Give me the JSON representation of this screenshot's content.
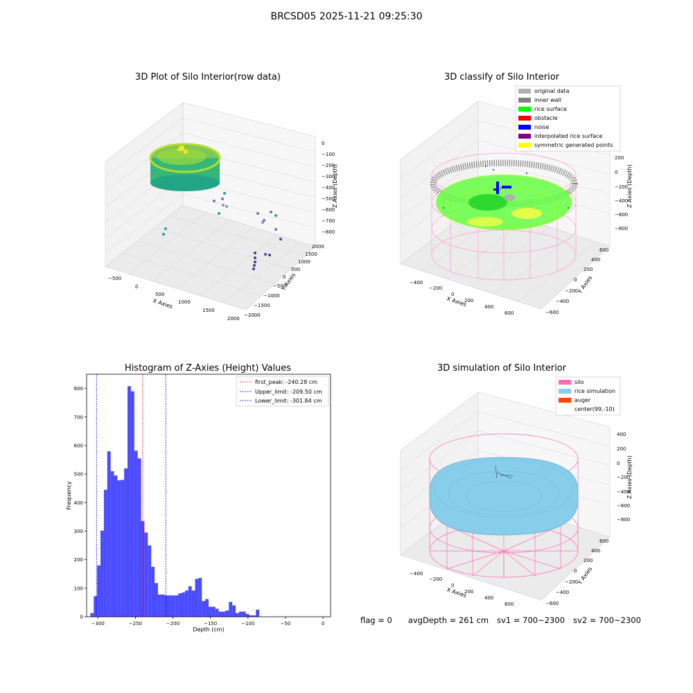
{
  "figure": {
    "suptitle": "BRCSD05 2025-11-21 09:25:30"
  },
  "panels": {
    "raw": {
      "title": "3D Plot of Silo Interior(row data)",
      "xlabel": "X Axies",
      "ylabel": "Y Axies",
      "zlabel": "Z Axies (Depth)",
      "xticks": [
        "−500",
        "0",
        "500",
        "1000",
        "1500",
        "2000"
      ],
      "yticks": [
        "−2000",
        "−1500",
        "−1000",
        "−500",
        "0",
        "500",
        "1000",
        "1500",
        "2000"
      ],
      "zticks": [
        "0",
        "−100",
        "−200",
        "−300",
        "−400",
        "−500",
        "−600",
        "−700",
        "−800"
      ]
    },
    "classify": {
      "title": "3D classify of Silo Interior",
      "xlabel": "X Axies",
      "ylabel": "Y Axies",
      "zlabel": "Z Axies (Depth)",
      "xticks": [
        "−400",
        "−200",
        "0",
        "200",
        "400",
        "600"
      ],
      "yticks": [
        "−600",
        "−400",
        "−200",
        "0",
        "200",
        "400",
        "600"
      ],
      "zticks": [
        "200",
        "0",
        "−200",
        "−400",
        "−600",
        "−800"
      ],
      "legend": [
        {
          "label": "original data",
          "color": "#b0b0b0"
        },
        {
          "label": "inner wall",
          "color": "#808080"
        },
        {
          "label": "rice surface",
          "color": "#00ff00"
        },
        {
          "label": "obstacle",
          "color": "#ff0000"
        },
        {
          "label": "noise",
          "color": "#0000ff"
        },
        {
          "label": "interpolated rice surface",
          "color": "#800080"
        },
        {
          "label": "symmetric generated points",
          "color": "#ffff00"
        }
      ]
    },
    "simulation": {
      "title": "3D simulation of Silo Interior",
      "xlabel": "X Axies",
      "ylabel": "Y Axies",
      "zlabel": "Z Axies (Depth)",
      "xticks": [
        "−400",
        "−200",
        "0",
        "200",
        "400",
        "600"
      ],
      "yticks": [
        "−600",
        "−400",
        "−200",
        "0",
        "200",
        "400",
        "600"
      ],
      "zticks": [
        "400",
        "200",
        "0",
        "−200",
        "−400",
        "−600",
        "−800"
      ],
      "legend": [
        {
          "label": "silo",
          "color": "#ff69b4"
        },
        {
          "label": "rice simulation",
          "color": "#87ceeb"
        },
        {
          "label": "auger",
          "color": "#ff4500"
        },
        {
          "label": "center(99,-10)",
          "color": "#ffffff"
        }
      ]
    }
  },
  "status": {
    "flag": "flag = 0",
    "avg_depth": "avgDepth = 261 cm",
    "sv1": "sv1 = 700~2300",
    "sv2": "sv2 = 700~2300"
  },
  "colors": {
    "bars": "#4b4bff",
    "first_peak_line": "#ff0000",
    "limit_lines": "#0000cc",
    "silo_wire": "#ff69b4",
    "rice": "#87ceeb"
  },
  "chart_data": [
    {
      "type": "bar",
      "title": "Histogram of Z-Axies (Height) Values",
      "xlabel": "Depth (cm)",
      "ylabel": "Frequency",
      "xlim": [
        -315,
        10
      ],
      "ylim": [
        0,
        850
      ],
      "xticks": [
        -300,
        -250,
        -200,
        -150,
        -100,
        -50,
        0
      ],
      "yticks": [
        0,
        100,
        200,
        300,
        400,
        500,
        600,
        700,
        800
      ],
      "bin_width": 4.5,
      "bins": [
        {
          "x0": -310,
          "x1": -305.5,
          "count": 13
        },
        {
          "x0": -305.5,
          "x1": -301,
          "count": 72
        },
        {
          "x0": -301,
          "x1": -296.5,
          "count": 180
        },
        {
          "x0": -296.5,
          "x1": -292,
          "count": 302
        },
        {
          "x0": -292,
          "x1": -287.5,
          "count": 445
        },
        {
          "x0": -287.5,
          "x1": -283,
          "count": 580
        },
        {
          "x0": -283,
          "x1": -278.5,
          "count": 510
        },
        {
          "x0": -278.5,
          "x1": -274,
          "count": 495
        },
        {
          "x0": -274,
          "x1": -269.5,
          "count": 478
        },
        {
          "x0": -269.5,
          "x1": -265,
          "count": 480
        },
        {
          "x0": -265,
          "x1": -260.5,
          "count": 520
        },
        {
          "x0": -260.5,
          "x1": -256,
          "count": 808
        },
        {
          "x0": -256,
          "x1": -251.5,
          "count": 790
        },
        {
          "x0": -251.5,
          "x1": -247,
          "count": 582
        },
        {
          "x0": -247,
          "x1": -242.5,
          "count": 555
        },
        {
          "x0": -242.5,
          "x1": -238,
          "count": 335
        },
        {
          "x0": -238,
          "x1": -233.5,
          "count": 295
        },
        {
          "x0": -233.5,
          "x1": -229,
          "count": 250
        },
        {
          "x0": -229,
          "x1": -224.5,
          "count": 175
        },
        {
          "x0": -224.5,
          "x1": -220,
          "count": 118
        },
        {
          "x0": -220,
          "x1": -215.5,
          "count": 78
        },
        {
          "x0": -215.5,
          "x1": -211,
          "count": 78
        },
        {
          "x0": -211,
          "x1": -206.5,
          "count": 75
        },
        {
          "x0": -206.5,
          "x1": -202,
          "count": 75
        },
        {
          "x0": -202,
          "x1": -197.5,
          "count": 75
        },
        {
          "x0": -197.5,
          "x1": -193,
          "count": 75
        },
        {
          "x0": -193,
          "x1": -188.5,
          "count": 82
        },
        {
          "x0": -188.5,
          "x1": -184,
          "count": 85
        },
        {
          "x0": -184,
          "x1": -179.5,
          "count": 92
        },
        {
          "x0": -179.5,
          "x1": -175,
          "count": 107
        },
        {
          "x0": -175,
          "x1": -170.5,
          "count": 92
        },
        {
          "x0": -170.5,
          "x1": -166,
          "count": 133
        },
        {
          "x0": -166,
          "x1": -161.5,
          "count": 136
        },
        {
          "x0": -161.5,
          "x1": -157,
          "count": 55
        },
        {
          "x0": -157,
          "x1": -152.5,
          "count": 62
        },
        {
          "x0": -152.5,
          "x1": -148,
          "count": 35
        },
        {
          "x0": -148,
          "x1": -143.5,
          "count": 35
        },
        {
          "x0": -143.5,
          "x1": -139,
          "count": 28
        },
        {
          "x0": -139,
          "x1": -134.5,
          "count": 18
        },
        {
          "x0": -134.5,
          "x1": -130,
          "count": 18
        },
        {
          "x0": -130,
          "x1": -125.5,
          "count": 22
        },
        {
          "x0": -125.5,
          "x1": -121,
          "count": 52
        },
        {
          "x0": -121,
          "x1": -116.5,
          "count": 40
        },
        {
          "x0": -116.5,
          "x1": -112,
          "count": 13
        },
        {
          "x0": -112,
          "x1": -107.5,
          "count": 18
        },
        {
          "x0": -107.5,
          "x1": -103,
          "count": 18
        },
        {
          "x0": -103,
          "x1": -98.5,
          "count": 10
        },
        {
          "x0": -98.5,
          "x1": -94,
          "count": 5
        },
        {
          "x0": -94,
          "x1": -89.5,
          "count": 5
        },
        {
          "x0": -89.5,
          "x1": -85,
          "count": 25
        }
      ],
      "lines": [
        {
          "name": "first_peak: -240.28 cm",
          "x": -240.28,
          "color": "#ff0000"
        },
        {
          "name": "Upper_limit: -209.50 cm",
          "x": -209.5,
          "color": "#0000cc"
        },
        {
          "name": "Lower_limit: -301.84 cm",
          "x": -301.84,
          "color": "#0000cc"
        }
      ],
      "legend_position": "upper right"
    }
  ]
}
